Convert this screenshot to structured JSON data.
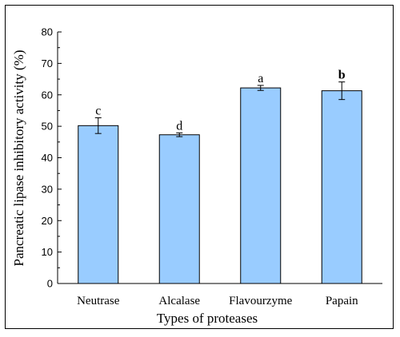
{
  "chart_data": {
    "type": "bar",
    "title": "",
    "xlabel": "Types of proteases",
    "ylabel": "Pancreatic lipase  inhibitory activity (%)",
    "ylim": [
      0,
      80
    ],
    "yticks": [
      0,
      10,
      20,
      30,
      40,
      50,
      60,
      70,
      80
    ],
    "categories": [
      "Neutrase",
      "Alcalase",
      "Flavourzyme",
      "Papain"
    ],
    "values": [
      50.2,
      47.3,
      62.2,
      61.3
    ],
    "errors": [
      2.5,
      0.6,
      0.8,
      2.8
    ],
    "significance_letters": [
      "c",
      "d",
      "a",
      "b"
    ],
    "grid": false,
    "colors": {
      "bar_fill": "#99ccff",
      "bar_stroke": "#000000"
    }
  }
}
